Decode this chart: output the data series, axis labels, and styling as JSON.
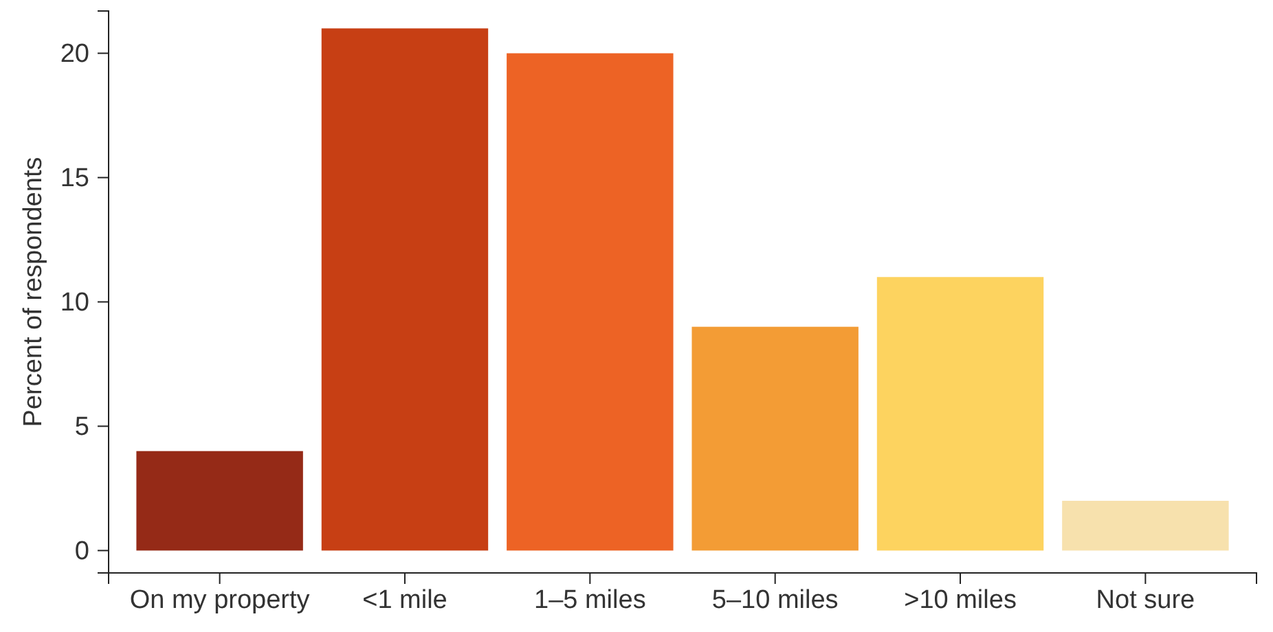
{
  "chart_data": {
    "type": "bar",
    "ylabel": "Percent of respondents",
    "categories": [
      "On my property",
      "<1 mile",
      "1–5 miles",
      "5–10 miles",
      ">10 miles",
      "Not sure"
    ],
    "values": [
      4,
      21,
      20,
      9,
      11,
      2
    ],
    "colors": [
      "#952a17",
      "#c73f14",
      "#ed6325",
      "#f39c35",
      "#fdd35f",
      "#f7e1ad"
    ],
    "ylim": [
      -0.9,
      21.7
    ],
    "yticks": [
      0,
      5,
      10,
      15,
      20
    ],
    "grid": false
  }
}
